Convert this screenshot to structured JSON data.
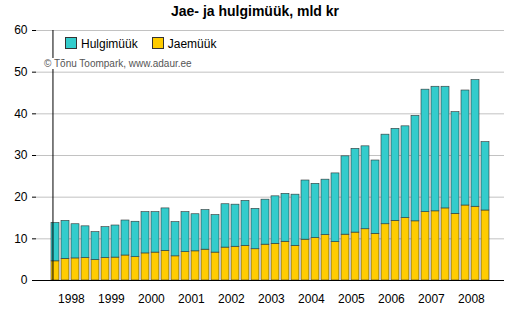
{
  "chart_data": {
    "type": "bar",
    "title": "Jae- ja hulgimüük, mld kr",
    "annotations": [
      "© Tõnu Toompark, www.adaur.ee"
    ],
    "stacked": true,
    "grid": true,
    "legend": "top-left",
    "categories": [
      "1998",
      null,
      null,
      null,
      "1999",
      null,
      null,
      null,
      "2000",
      null,
      null,
      null,
      "2001",
      null,
      null,
      null,
      "2002",
      null,
      null,
      null,
      "2003",
      null,
      null,
      null,
      "2004",
      null,
      null,
      null,
      "2005",
      null,
      null,
      null,
      "2006",
      null,
      null,
      null,
      "2007",
      null,
      null,
      null,
      "2008",
      null,
      null,
      null
    ],
    "series": [
      {
        "name": "Hulgimüük",
        "color": "#33cccc",
        "values": [
          9.2,
          9.1,
          8.2,
          7.6,
          6.7,
          7.4,
          7.7,
          8.4,
          8.5,
          9.9,
          9.7,
          10.2,
          8.2,
          9.6,
          8.9,
          9.5,
          9.0,
          10.4,
          10.1,
          10.8,
          9.7,
          10.8,
          11.4,
          11.5,
          12.3,
          14.2,
          13.0,
          13.3,
          16.5,
          18.8,
          20.1,
          19.9,
          17.6,
          21.5,
          22.1,
          22.0,
          25.3,
          29.4,
          29.9,
          29.2,
          24.4,
          27.6,
          30.4,
          16.4
        ]
      },
      {
        "name": "Jaemüük",
        "color": "#ffcc00",
        "values": [
          4.6,
          5.2,
          5.3,
          5.4,
          4.9,
          5.4,
          5.5,
          6.0,
          5.6,
          6.5,
          6.7,
          7.1,
          5.8,
          6.8,
          7.0,
          7.4,
          6.7,
          7.9,
          8.1,
          8.3,
          7.5,
          8.6,
          8.8,
          9.3,
          8.3,
          9.8,
          10.2,
          10.9,
          9.2,
          11.0,
          11.5,
          12.3,
          11.2,
          13.5,
          14.3,
          15.0,
          14.2,
          16.4,
          16.6,
          17.3,
          16.0,
          18.0,
          17.7,
          16.8
        ]
      }
    ],
    "ylim": [
      0,
      60
    ],
    "yticks": [
      0,
      10,
      20,
      30,
      40,
      50,
      60
    ]
  }
}
